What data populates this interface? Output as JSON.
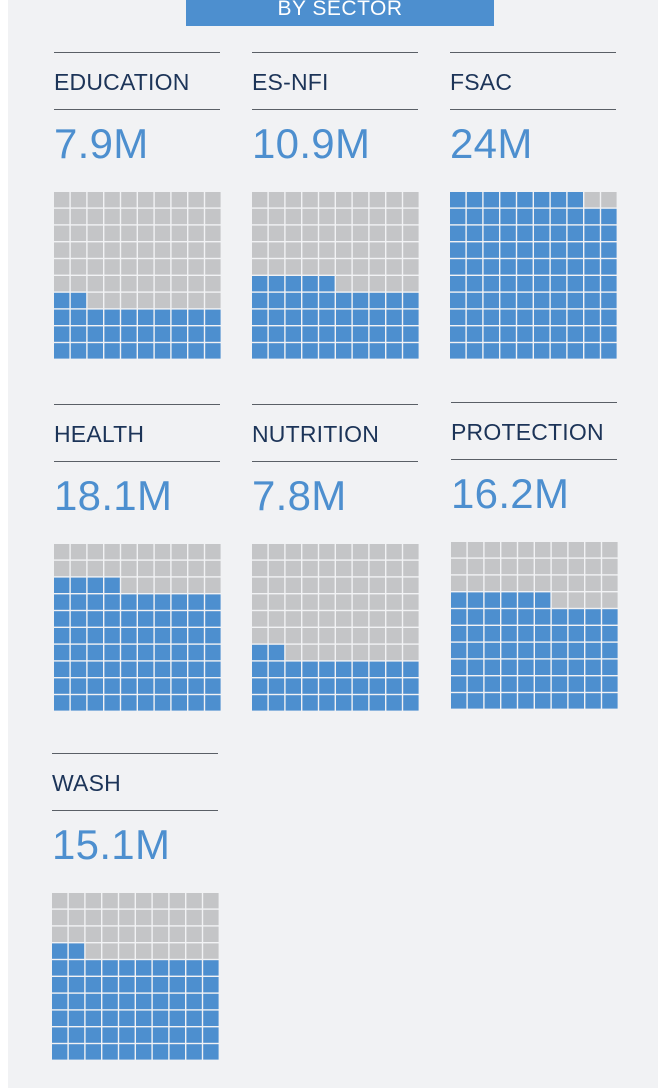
{
  "header": {
    "title": "BY SECTOR"
  },
  "colors": {
    "filled": "#4d8fcf",
    "empty": "#c4c5c7",
    "name": "#1c3458",
    "value": "#4d8fcf"
  },
  "chart_data": {
    "type": "waffle",
    "grid": {
      "rows": 10,
      "cols": 10
    },
    "sectors": [
      {
        "name": "EDUCATION",
        "value_label": "7.9M",
        "filled_cells": 32
      },
      {
        "name": "ES-NFI",
        "value_label": "10.9M",
        "filled_cells": 45
      },
      {
        "name": "FSAC",
        "value_label": "24M",
        "filled_cells": 98
      },
      {
        "name": "HEALTH",
        "value_label": "18.1M",
        "filled_cells": 74
      },
      {
        "name": "NUTRITION",
        "value_label": "7.8M",
        "filled_cells": 32
      },
      {
        "name": "PROTECTION",
        "value_label": "16.2M",
        "filled_cells": 66
      },
      {
        "name": "WASH",
        "value_label": "15.1M",
        "filled_cells": 62
      }
    ]
  }
}
